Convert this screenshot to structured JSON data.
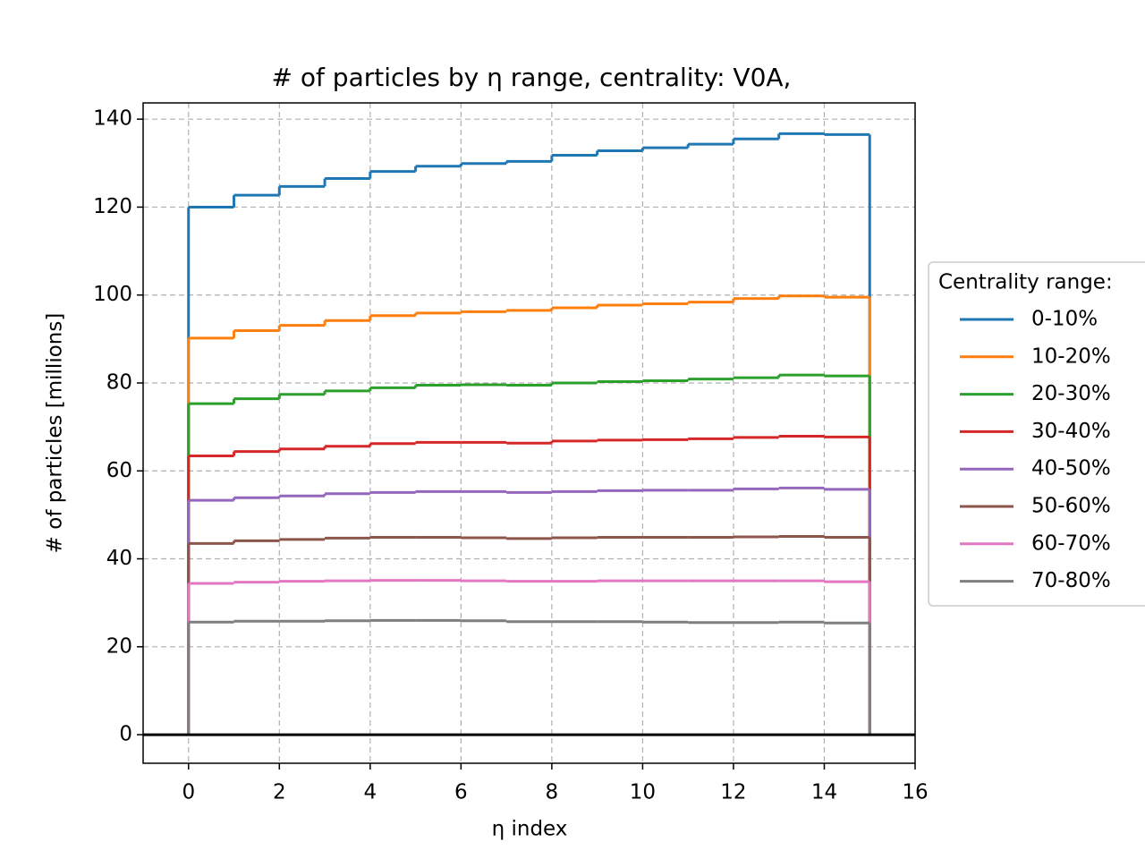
{
  "chart_data": {
    "type": "histogram",
    "title": "# of particles by η range, centrality: V0A,",
    "x_label": "η index",
    "y_label": "# of particles [millions]",
    "legend_title": "Centrality range:",
    "legend": "center right outside",
    "grid": true,
    "hline": 0,
    "bins": [
      0,
      1,
      2,
      3,
      4,
      5,
      6,
      7,
      8,
      9,
      10,
      11,
      12,
      13,
      14,
      15
    ],
    "xlim": [
      -1,
      16
    ],
    "xticks": [
      0,
      2,
      4,
      6,
      8,
      10,
      12,
      14,
      16
    ],
    "ylim": [
      -6.5,
      143.7
    ],
    "yticks": [
      0,
      20,
      40,
      60,
      80,
      100,
      120,
      140
    ],
    "series": [
      {
        "name": "0-10%",
        "color": "#1f77b4",
        "values": [
          120,
          122.7,
          124.7,
          126.5,
          128.1,
          129.3,
          129.9,
          130.4,
          131.8,
          132.8,
          133.5,
          134.3,
          135.5,
          136.7,
          136.5
        ]
      },
      {
        "name": "10-20%",
        "color": "#ff7f0e",
        "values": [
          90.2,
          91.9,
          93.1,
          94.2,
          95.3,
          95.9,
          96.2,
          96.5,
          97.1,
          97.7,
          98.0,
          98.4,
          99.2,
          99.8,
          99.5
        ]
      },
      {
        "name": "20-30%",
        "color": "#2ca02c",
        "values": [
          75.3,
          76.4,
          77.4,
          78.2,
          78.9,
          79.5,
          79.6,
          79.5,
          80.0,
          80.3,
          80.5,
          80.9,
          81.2,
          81.8,
          81.6
        ]
      },
      {
        "name": "30-40%",
        "color": "#d62728",
        "values": [
          63.4,
          64.4,
          65.0,
          65.6,
          66.2,
          66.5,
          66.5,
          66.3,
          66.8,
          67.0,
          67.1,
          67.3,
          67.6,
          67.9,
          67.7
        ]
      },
      {
        "name": "40-50%",
        "color": "#9467bd",
        "values": [
          53.3,
          53.9,
          54.3,
          54.8,
          55.1,
          55.3,
          55.3,
          55.1,
          55.3,
          55.5,
          55.6,
          55.6,
          55.9,
          56.1,
          55.8
        ]
      },
      {
        "name": "50-60%",
        "color": "#8c564b",
        "values": [
          43.5,
          44.1,
          44.4,
          44.7,
          44.9,
          44.9,
          44.8,
          44.6,
          44.8,
          44.9,
          44.9,
          44.9,
          45.0,
          45.1,
          44.9
        ]
      },
      {
        "name": "60-70%",
        "color": "#e377c2",
        "values": [
          34.4,
          34.7,
          34.9,
          35.0,
          35.1,
          35.1,
          35.0,
          34.9,
          34.9,
          35.0,
          35.0,
          35.0,
          35.0,
          35.0,
          34.8
        ]
      },
      {
        "name": "70-80%",
        "color": "#7f7f7f",
        "values": [
          25.6,
          25.8,
          25.8,
          25.9,
          26.0,
          26.0,
          25.9,
          25.7,
          25.7,
          25.7,
          25.6,
          25.5,
          25.5,
          25.6,
          25.4
        ]
      }
    ]
  }
}
